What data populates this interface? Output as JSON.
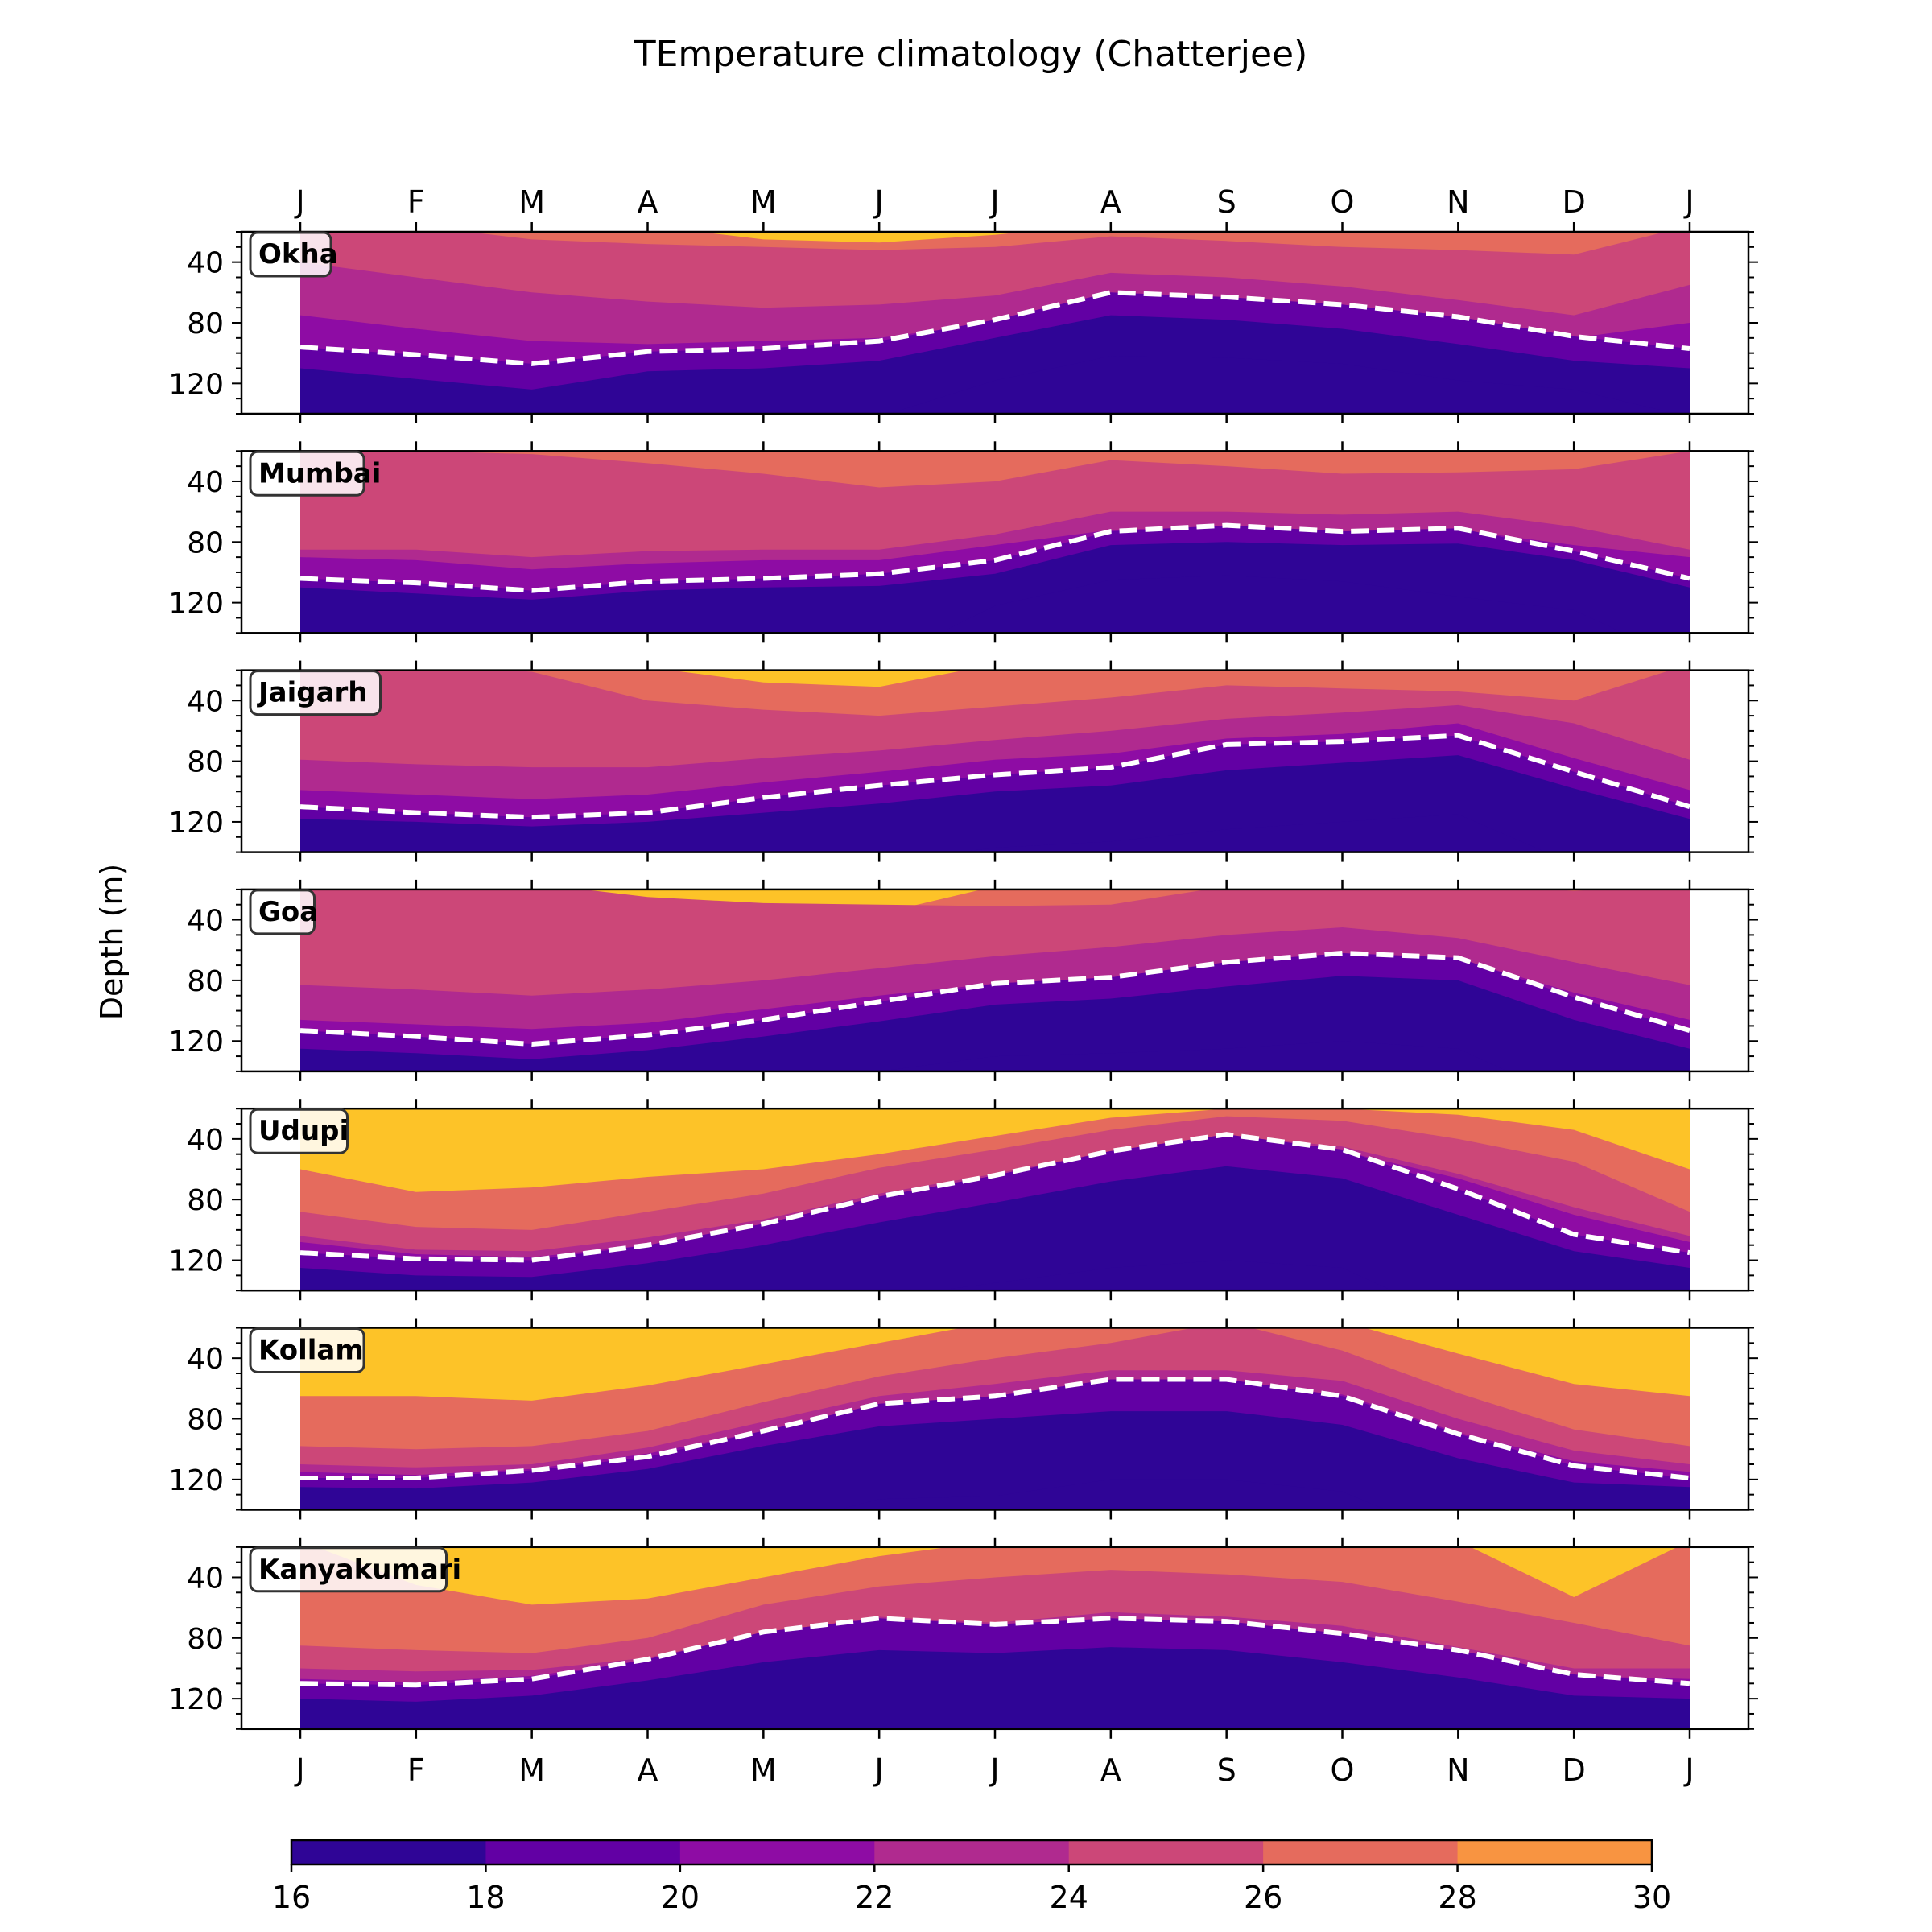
{
  "chart_data": {
    "type": "heatmap",
    "plot_style": "filled contour, one panel per station, shared x axis",
    "title": "TEmperature climatology (Chatterjee)",
    "ylabel": "Depth (m)",
    "xlabel": "",
    "x_tick_labels": [
      "J",
      "F",
      "M",
      "A",
      "M",
      "J",
      "J",
      "A",
      "S",
      "O",
      "N",
      "D",
      "J"
    ],
    "x_ticks_top_and_bottom": true,
    "y_ticks": [
      40,
      80,
      120
    ],
    "ylim": [
      140,
      20
    ],
    "y_inverted": true,
    "colormap": "plasma",
    "contour_levels": [
      16,
      18,
      20,
      22,
      24,
      26,
      28,
      30
    ],
    "level_colors": [
      "#2f0596",
      "#6200a4",
      "#8e0ca4",
      "#b02a8f",
      "#cc4778",
      "#e56b5d",
      "#f89441",
      "#fdc328"
    ],
    "colorbar": {
      "orientation": "horizontal",
      "location": "bottom",
      "ticks": [
        16,
        18,
        20,
        22,
        24,
        26,
        28,
        30
      ]
    },
    "overlay": {
      "style": "white dashed line",
      "meaning": "depth of the 20 °C isotherm"
    },
    "months": [
      "J",
      "F",
      "M",
      "A",
      "M",
      "J",
      "J",
      "A",
      "S",
      "O",
      "N",
      "D",
      "J"
    ],
    "stations": [
      {
        "name": "Okha",
        "isotherms": [
          {
            "level": 28,
            "depth": [
              16,
              16,
              16,
              16,
              25,
              27,
              22,
              14,
              14,
              13,
              16,
              18,
              16
            ]
          },
          {
            "level": 26,
            "depth": [
              20,
              16,
              25,
              28,
              30,
              32,
              30,
              23,
              26,
              30,
              32,
              35,
              16
            ]
          },
          {
            "level": 24,
            "depth": [
              40,
              50,
              60,
              66,
              70,
              68,
              62,
              47,
              50,
              56,
              65,
              75,
              55
            ]
          },
          {
            "level": 22,
            "depth": [
              75,
              84,
              92,
              94,
              92,
              90,
              80,
              62,
              64,
              68,
              77,
              90,
              80
            ]
          },
          {
            "level": 20,
            "depth": [
              96,
              101,
              107,
              99,
              97,
              92,
              78,
              60,
              63,
              68,
              76,
              89,
              97
            ]
          },
          {
            "level": 18,
            "depth": [
              110,
              117,
              124,
              112,
              110,
              105,
              90,
              75,
              78,
              84,
              94,
              105,
              110
            ]
          },
          {
            "level": 16,
            "depth": [
              160,
              160,
              160,
              160,
              160,
              142,
              118,
              102,
              103,
              107,
              118,
              124,
              142
            ]
          }
        ]
      },
      {
        "name": "Mumbai",
        "isotherms": [
          {
            "level": 28,
            "depth": [
              16,
              16,
              16,
              16,
              18,
              19,
              16,
              16,
              16,
              16,
              16,
              16,
              16
            ]
          },
          {
            "level": 26,
            "depth": [
              20,
              20,
              22,
              28,
              35,
              44,
              40,
              26,
              30,
              35,
              34,
              32,
              20
            ]
          },
          {
            "level": 24,
            "depth": [
              85,
              85,
              90,
              86,
              85,
              85,
              75,
              60,
              60,
              62,
              60,
              70,
              85
            ]
          },
          {
            "level": 22,
            "depth": [
              90,
              92,
              98,
              94,
              92,
              92,
              82,
              72,
              70,
              73,
              72,
              82,
              90
            ]
          },
          {
            "level": 20,
            "depth": [
              104,
              107,
              112,
              106,
              104,
              101,
              92,
              73,
              69,
              73,
              71,
              86,
              104
            ]
          },
          {
            "level": 18,
            "depth": [
              110,
              114,
              118,
              112,
              110,
              109,
              101,
              82,
              80,
              82,
              81,
              92,
              110
            ]
          },
          {
            "level": 16,
            "depth": [
              160,
              160,
              160,
              160,
              160,
              160,
              122,
              105,
              102,
              106,
              116,
              125,
              160
            ]
          }
        ]
      },
      {
        "name": "Jaigarh",
        "isotherms": [
          {
            "level": 28,
            "depth": [
              16,
              16,
              16,
              18,
              28,
              31,
              16,
              16,
              16,
              16,
              16,
              16,
              16
            ]
          },
          {
            "level": 26,
            "depth": [
              16,
              16,
              21,
              40,
              46,
              50,
              44,
              38,
              30,
              32,
              34,
              40,
              16
            ]
          },
          {
            "level": 24,
            "depth": [
              79,
              82,
              84,
              84,
              78,
              73,
              66,
              60,
              52,
              48,
              43,
              55,
              79
            ]
          },
          {
            "level": 22,
            "depth": [
              99,
              102,
              105,
              102,
              94,
              87,
              79,
              75,
              65,
              62,
              55,
              78,
              99
            ]
          },
          {
            "level": 20,
            "depth": [
              110,
              114,
              117,
              114,
              104,
              96,
              89,
              84,
              69,
              67,
              63,
              87,
              110
            ]
          },
          {
            "level": 18,
            "depth": [
              118,
              120,
              123,
              120,
              114,
              108,
              100,
              96,
              86,
              81,
              76,
              98,
              118
            ]
          },
          {
            "level": 16,
            "depth": [
              160,
              160,
              160,
              160,
              160,
              147,
              137,
              133,
              125,
              120,
              115,
              148,
              160
            ]
          }
        ]
      },
      {
        "name": "Goa",
        "isotherms": [
          {
            "level": 28,
            "depth": [
              16,
              16,
              16,
              32,
              40,
              36,
              18,
              16,
              16,
              16,
              16,
              18,
              16
            ]
          },
          {
            "level": 26,
            "depth": [
              16,
              16,
              16,
              25,
              29,
              30,
              31,
              30,
              18,
              16,
              15,
              21,
              16
            ]
          },
          {
            "level": 24,
            "depth": [
              83,
              86,
              90,
              86,
              80,
              72,
              64,
              58,
              50,
              45,
              52,
              68,
              83
            ]
          },
          {
            "level": 22,
            "depth": [
              106,
              109,
              112,
              108,
              99,
              90,
              82,
              78,
              68,
              62,
              66,
              88,
              106
            ]
          },
          {
            "level": 20,
            "depth": [
              113,
              117,
              122,
              116,
              106,
              94,
              82,
              78,
              68,
              62,
              65,
              91,
              113
            ]
          },
          {
            "level": 18,
            "depth": [
              125,
              128,
              132,
              126,
              117,
              107,
              96,
              92,
              84,
              77,
              80,
              106,
              125
            ]
          },
          {
            "level": 16,
            "depth": [
              160,
              160,
              160,
              160,
              152,
              140,
              130,
              128,
              125,
              120,
              125,
              160,
              160
            ]
          }
        ]
      },
      {
        "name": "Udupi",
        "isotherms": [
          {
            "level": 28,
            "depth": [
              60,
              75,
              72,
              65,
              60,
              50,
              38,
              26,
              20,
              20,
              24,
              34,
              60
            ]
          },
          {
            "level": 26,
            "depth": [
              88,
              98,
              100,
              88,
              76,
              59,
              47,
              34,
              25,
              28,
              40,
              55,
              88
            ]
          },
          {
            "level": 24,
            "depth": [
              104,
              113,
              114,
              105,
              93,
              76,
              63,
              48,
              38,
              45,
              63,
              85,
              104
            ]
          },
          {
            "level": 22,
            "depth": [
              108,
              116,
              118,
              110,
              97,
              80,
              66,
              52,
              40,
              48,
              66,
              90,
              108
            ]
          },
          {
            "level": 20,
            "depth": [
              115,
              119,
              120,
              110,
              96,
              78,
              64,
              48,
              37,
              47,
              73,
              103,
              115
            ]
          },
          {
            "level": 18,
            "depth": [
              125,
              130,
              131,
              122,
              110,
              95,
              82,
              68,
              58,
              66,
              90,
              114,
              125
            ]
          },
          {
            "level": 16,
            "depth": [
              160,
              160,
              160,
              160,
              160,
              145,
              135,
              125,
              120,
              125,
              160,
              160,
              160
            ]
          }
        ]
      },
      {
        "name": "Kollam",
        "isotherms": [
          {
            "level": 28,
            "depth": [
              65,
              65,
              68,
              58,
              44,
              30,
              16,
              16,
              16,
              16,
              37,
              57,
              65
            ]
          },
          {
            "level": 26,
            "depth": [
              98,
              100,
              98,
              88,
              69,
              52,
              40,
              30,
              16,
              35,
              63,
              87,
              98
            ]
          },
          {
            "level": 24,
            "depth": [
              110,
              112,
              110,
              99,
              82,
              65,
              57,
              48,
              48,
              55,
              80,
              101,
              110
            ]
          },
          {
            "level": 22,
            "depth": [
              115,
              117,
              113,
              103,
              88,
              72,
              66,
              58,
              58,
              64,
              89,
              108,
              115
            ]
          },
          {
            "level": 20,
            "depth": [
              119,
              119,
              114,
              105,
              88,
              70,
              65,
              54,
              54,
              65,
              90,
              111,
              119
            ]
          },
          {
            "level": 18,
            "depth": [
              125,
              126,
              122,
              113,
              98,
              85,
              80,
              75,
              75,
              84,
              106,
              122,
              125
            ]
          },
          {
            "level": 16,
            "depth": [
              160,
              160,
              160,
              160,
              153,
              133,
              131,
              120,
              120,
              128,
              160,
              160,
              160
            ]
          }
        ]
      },
      {
        "name": "Kanyakumari",
        "isotherms": [
          {
            "level": 28,
            "depth": [
              16,
              45,
              58,
              54,
              40,
              26,
              16,
              16,
              16,
              16,
              16,
              53,
              16
            ]
          },
          {
            "level": 26,
            "depth": [
              85,
              88,
              90,
              80,
              58,
              46,
              40,
              35,
              38,
              43,
              56,
              70,
              85
            ]
          },
          {
            "level": 24,
            "depth": [
              100,
              102,
              101,
              93,
              77,
              66,
              70,
              63,
              66,
              72,
              86,
              100,
              100
            ]
          },
          {
            "level": 22,
            "depth": [
              107,
              109,
              105,
              95,
              80,
              70,
              74,
              70,
              73,
              80,
              92,
              105,
              107
            ]
          },
          {
            "level": 20,
            "depth": [
              110,
              111,
              107,
              94,
              76,
              67,
              71,
              67,
              69,
              77,
              88,
              104,
              110
            ]
          },
          {
            "level": 18,
            "depth": [
              120,
              122,
              118,
              108,
              96,
              88,
              90,
              86,
              88,
              96,
              106,
              118,
              120
            ]
          },
          {
            "level": 16,
            "depth": [
              160,
              160,
              160,
              160,
              160,
              145,
              145,
              141,
              145,
              152,
              160,
              160,
              160
            ]
          }
        ]
      }
    ]
  }
}
